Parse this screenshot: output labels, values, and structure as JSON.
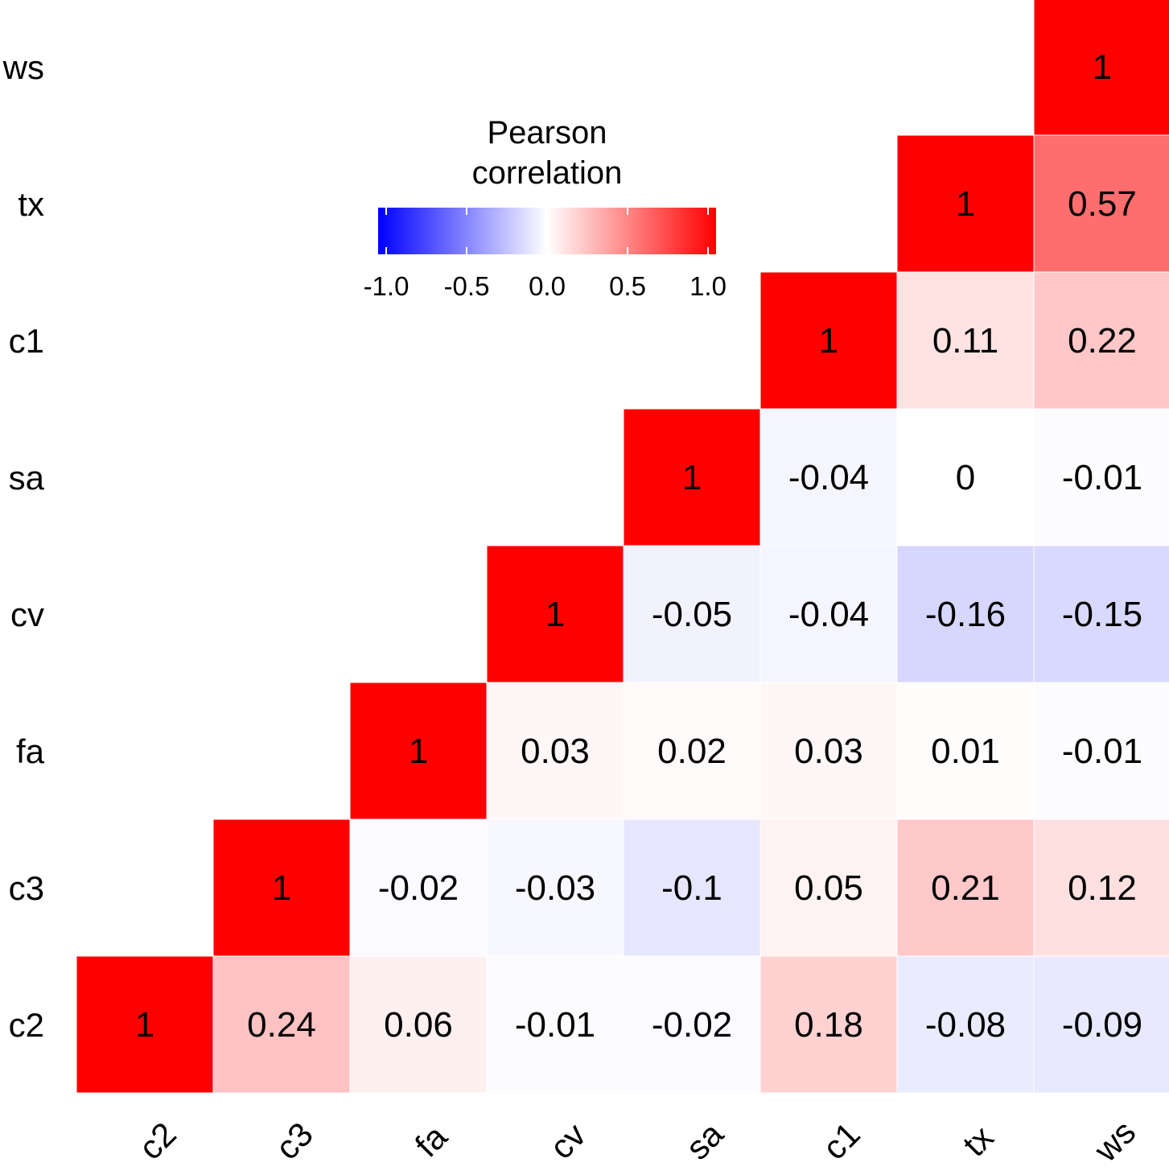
{
  "chart_data": {
    "type": "heatmap",
    "variables": [
      "c2",
      "c3",
      "fa",
      "cv",
      "sa",
      "c1",
      "tx",
      "ws"
    ],
    "x_labels": [
      "c2",
      "c3",
      "fa",
      "cv",
      "sa",
      "c1",
      "tx",
      "ws"
    ],
    "y_labels": [
      "ws",
      "tx",
      "c1",
      "sa",
      "cv",
      "fa",
      "c3",
      "c2"
    ],
    "matrix": [
      [
        1,
        0.24,
        0.06,
        -0.01,
        -0.02,
        0.18,
        -0.08,
        -0.09
      ],
      [
        0.24,
        1,
        -0.02,
        -0.03,
        -0.1,
        0.05,
        0.21,
        0.12
      ],
      [
        0.06,
        -0.02,
        1,
        0.03,
        0.02,
        0.03,
        0.01,
        -0.01
      ],
      [
        -0.01,
        -0.03,
        0.03,
        1,
        -0.05,
        -0.04,
        -0.16,
        -0.15
      ],
      [
        -0.02,
        -0.1,
        0.02,
        -0.05,
        1,
        -0.04,
        0,
        -0.01
      ],
      [
        0.18,
        0.05,
        0.03,
        -0.04,
        -0.04,
        1,
        0.11,
        0.22
      ],
      [
        -0.08,
        0.21,
        0.01,
        -0.16,
        0,
        0.11,
        1,
        0.57
      ],
      [
        -0.09,
        0.12,
        -0.01,
        -0.15,
        -0.01,
        0.22,
        0.57,
        1
      ]
    ],
    "display": "upper-triangle",
    "legend": {
      "title_line1": "Pearson",
      "title_line2": "correlation",
      "range": [
        -1,
        1
      ],
      "ticks": [
        "-1.0",
        "-0.5",
        "0.0",
        "0.5",
        "1.0"
      ],
      "colors": {
        "low": "#0000FF",
        "mid": "#FFFFFF",
        "high": "#FF0000"
      },
      "placement": "top-left"
    }
  }
}
